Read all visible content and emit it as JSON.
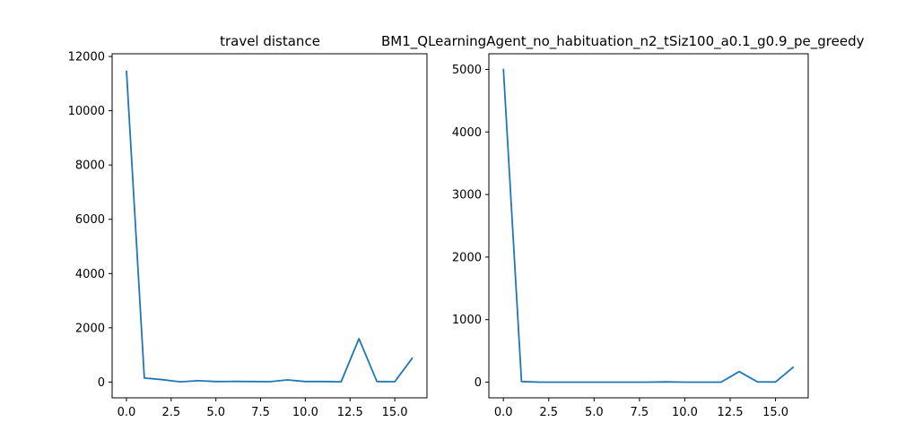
{
  "colors": {
    "series": "#1f77b4"
  },
  "chart_data": [
    {
      "type": "line",
      "title": "travel distance",
      "xlim": [
        -0.8,
        16.8
      ],
      "ylim": [
        -580,
        12100
      ],
      "xticks": [
        "0.0",
        "2.5",
        "5.0",
        "7.5",
        "10.0",
        "12.5",
        "15.0"
      ],
      "xtick_values": [
        0,
        2.5,
        5,
        7.5,
        10,
        12.5,
        15
      ],
      "yticks": [
        "0",
        "2000",
        "4000",
        "6000",
        "8000",
        "10000",
        "12000"
      ],
      "ytick_values": [
        0,
        2000,
        4000,
        6000,
        8000,
        10000,
        12000
      ],
      "x": [
        0,
        1,
        2,
        3,
        4,
        5,
        6,
        7,
        8,
        9,
        10,
        11,
        12,
        13,
        14,
        15,
        16
      ],
      "y": [
        11480,
        150,
        90,
        10,
        50,
        20,
        25,
        20,
        15,
        80,
        20,
        20,
        10,
        1600,
        20,
        15,
        900
      ]
    },
    {
      "type": "line",
      "title": "BM1_QLearningAgent_no_habituation_n2_tSiz100_a0.1_g0.9_pe_greedy",
      "xlim": [
        -0.8,
        16.8
      ],
      "ylim": [
        -250,
        5250
      ],
      "xticks": [
        "0.0",
        "2.5",
        "5.0",
        "7.5",
        "10.0",
        "12.5",
        "15.0"
      ],
      "xtick_values": [
        0,
        2.5,
        5,
        7.5,
        10,
        12.5,
        15
      ],
      "yticks": [
        "0",
        "1000",
        "2000",
        "3000",
        "4000",
        "5000"
      ],
      "ytick_values": [
        0,
        1000,
        2000,
        3000,
        4000,
        5000
      ],
      "x": [
        0,
        1,
        2,
        3,
        4,
        5,
        6,
        7,
        8,
        9,
        10,
        11,
        12,
        13,
        14,
        15,
        16
      ],
      "y": [
        5010,
        10,
        0,
        0,
        0,
        0,
        0,
        0,
        0,
        5,
        0,
        0,
        0,
        170,
        5,
        3,
        245
      ]
    }
  ]
}
